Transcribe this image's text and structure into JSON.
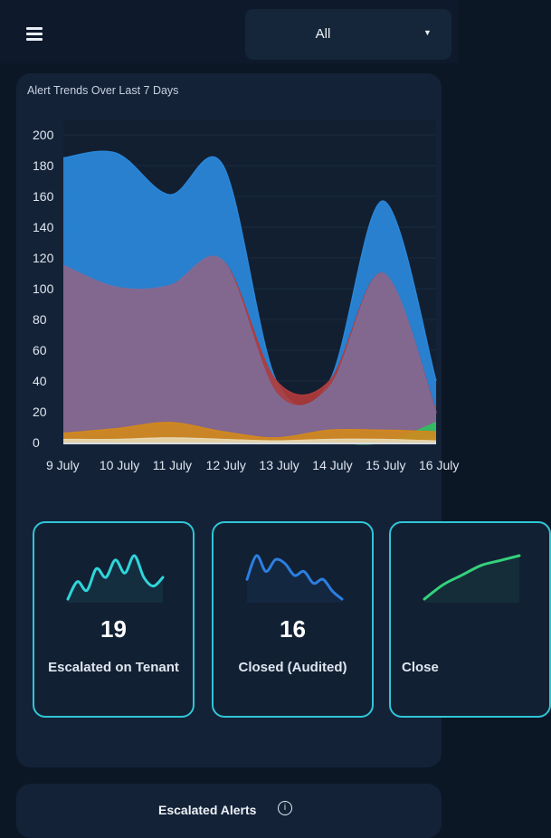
{
  "header": {
    "menu_icon": "hamburger-menu-icon",
    "filter": {
      "selected": "All",
      "caret_icon": "caret-down-icon"
    }
  },
  "trends": {
    "title": "Alert Trends Over Last 7 Days"
  },
  "chart_data": {
    "type": "area",
    "title": "Alert Trends Over Last 7 Days",
    "xlabel": "",
    "ylabel": "",
    "ylim": [
      0,
      200
    ],
    "yticks": [
      "200",
      "180",
      "160",
      "140",
      "120",
      "100",
      "80",
      "60",
      "40",
      "20",
      "0"
    ],
    "categories": [
      "9 July",
      "10 July",
      "11 July",
      "12 July",
      "13 July",
      "14 July",
      "15 July",
      "16 July"
    ],
    "grid": true,
    "legend": "none",
    "series": [
      {
        "color": "#2a86d8",
        "values": [
          185,
          188,
          161,
          180,
          40,
          40,
          157,
          40
        ]
      },
      {
        "color": "#b23b3b",
        "values": [
          115,
          100,
          102,
          118,
          40,
          40,
          110,
          20
        ]
      },
      {
        "color": "#7e6b97",
        "values": [
          115,
          101,
          102,
          118,
          32,
          36,
          110,
          19
        ]
      },
      {
        "color": "#2fbf5f",
        "values": [
          0,
          0,
          0,
          0,
          0,
          0,
          0,
          13
        ]
      },
      {
        "color": "#d2881c",
        "values": [
          6,
          9,
          13,
          7,
          3,
          8,
          8,
          7
        ]
      },
      {
        "color": "#e6d7b0",
        "values": [
          2,
          2,
          3,
          2,
          1,
          2,
          2,
          1
        ]
      }
    ]
  },
  "stats": [
    {
      "value": "19",
      "label": "Escalated on Tenant",
      "color": "#2fd6da",
      "spark": [
        4,
        8,
        6,
        11,
        9,
        13,
        10,
        14,
        9,
        7,
        9
      ]
    },
    {
      "value": "16",
      "label": "Closed (Audited)",
      "color": "#2b7fe0",
      "spark": [
        8,
        14,
        10,
        13,
        12,
        9,
        10,
        7,
        8,
        5,
        3
      ]
    },
    {
      "value": "",
      "label": "Close",
      "color": "#34d27c",
      "spark": [
        3,
        6,
        8,
        10,
        11,
        12
      ]
    }
  ],
  "bottom": {
    "title": "Escalated Alerts",
    "info_icon": "info-icon",
    "info_glyph": "i"
  }
}
